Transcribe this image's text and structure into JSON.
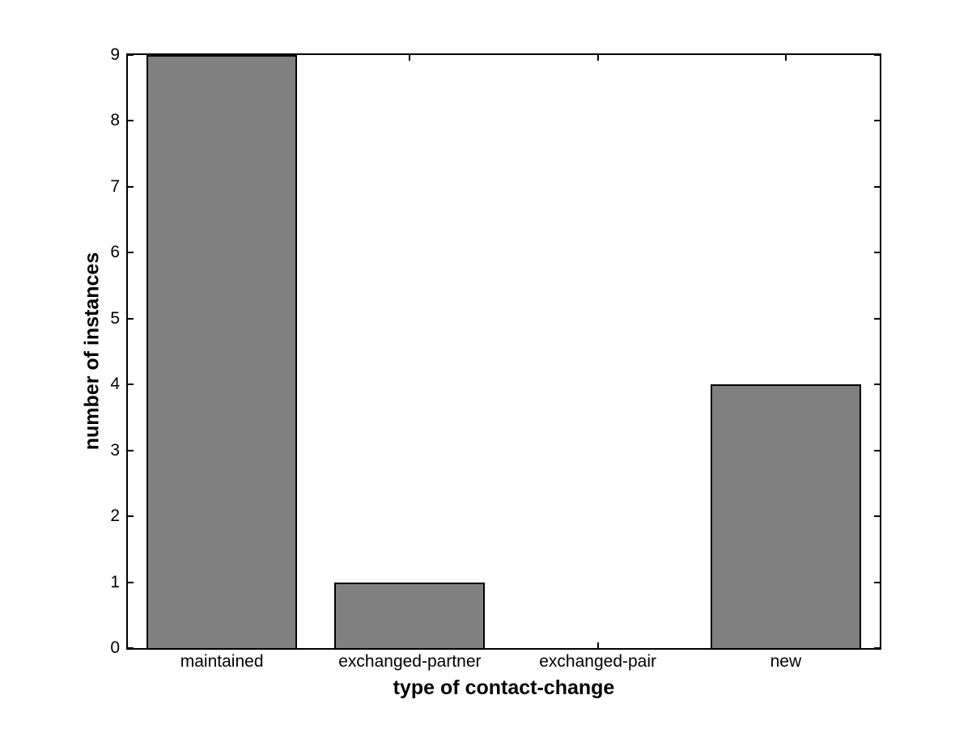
{
  "window": {
    "background": "#ffffff"
  },
  "chart_data": {
    "type": "bar",
    "title": "",
    "xlabel": "type of contact-change",
    "ylabel": "number of instances",
    "categories": [
      "maintained",
      "exchanged-partner",
      "exchanged-pair",
      "new"
    ],
    "values": [
      9,
      1,
      0,
      4
    ],
    "ylim": [
      0,
      9
    ],
    "yticks": [
      "0",
      "1",
      "2",
      "3",
      "4",
      "5",
      "6",
      "7",
      "8",
      "9"
    ],
    "bar_width_fraction": 0.8,
    "bar_fill_color": "#808080",
    "bar_edge_color": "#000000",
    "axis_color": "#000000",
    "plot_background": "#ffffff",
    "grid": false,
    "legend": "none",
    "tick_direction": "in",
    "box": true
  }
}
